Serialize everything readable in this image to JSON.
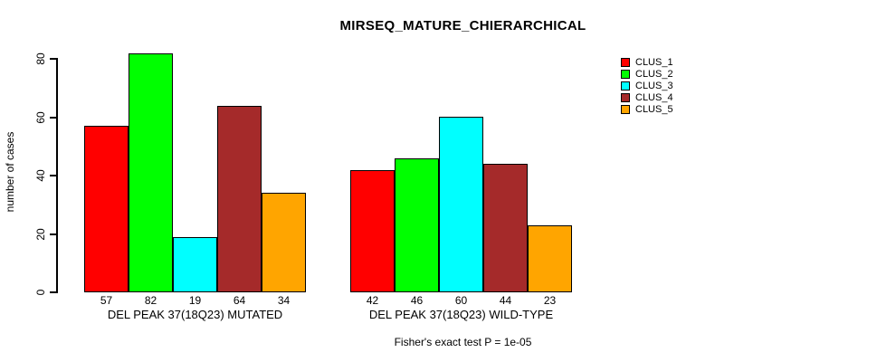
{
  "page": {
    "background_color": "#ffffff",
    "text_color": "#000000"
  },
  "chart_data": {
    "type": "bar",
    "title": "MIRSEQ_MATURE_CHIERARCHICAL",
    "xlabel": "",
    "ylabel": "number of cases",
    "ylim": [
      0,
      82
    ],
    "yticks": [
      0,
      20,
      40,
      60,
      80
    ],
    "grid": false,
    "bar_value_labels_shown": true,
    "legend_position": "top-right",
    "categories": [
      "DEL PEAK 37(18Q23) MUTATED",
      "DEL PEAK 37(18Q23) WILD-TYPE"
    ],
    "series": [
      {
        "name": "CLUS_1",
        "color": "#FF0000",
        "values": [
          57,
          42
        ]
      },
      {
        "name": "CLUS_2",
        "color": "#00FF00",
        "values": [
          82,
          46
        ]
      },
      {
        "name": "CLUS_3",
        "color": "#00FFFF",
        "values": [
          19,
          60
        ]
      },
      {
        "name": "CLUS_4",
        "color": "#A52A2A",
        "values": [
          64,
          44
        ]
      },
      {
        "name": "CLUS_5",
        "color": "#FFA500",
        "values": [
          34,
          23
        ]
      }
    ],
    "footnote": "Fisher's exact test P = 1e-05"
  }
}
